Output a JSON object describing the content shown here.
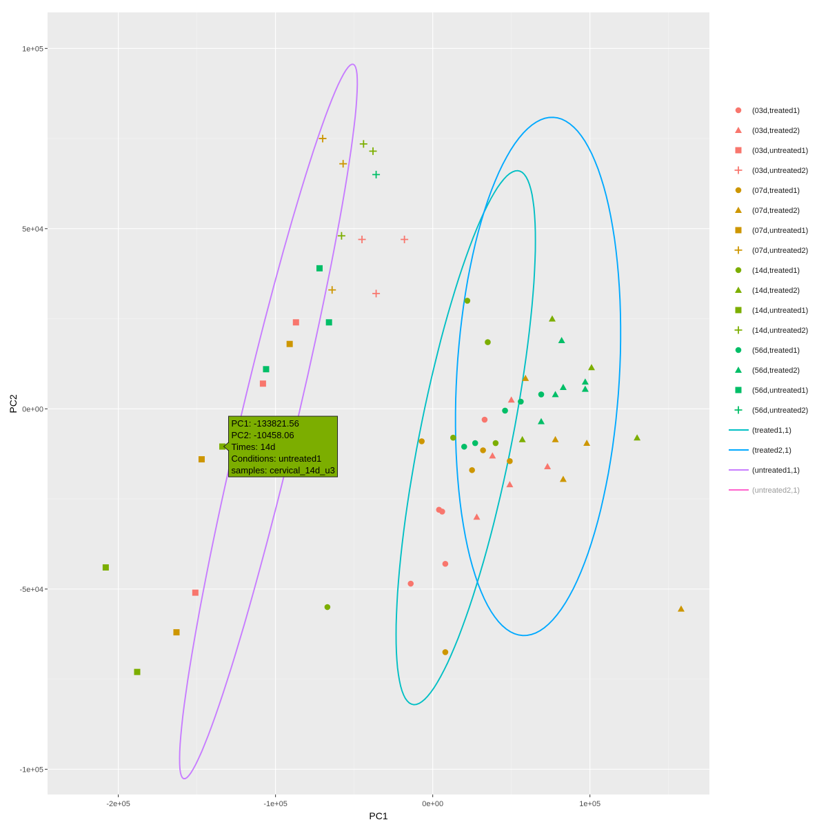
{
  "chart_data": {
    "type": "scatter",
    "title": "",
    "xlabel": "PC1",
    "ylabel": "PC2",
    "xlim": [
      -245000,
      176000
    ],
    "ylim": [
      -107000,
      110000
    ],
    "x_ticks": [
      {
        "value": -200000,
        "label": "-2e+05"
      },
      {
        "value": -100000,
        "label": "-1e+05"
      },
      {
        "value": 0,
        "label": "0e+00"
      },
      {
        "value": 100000,
        "label": "1e+05"
      }
    ],
    "y_ticks": [
      {
        "value": 100000,
        "label": "1e+05"
      },
      {
        "value": 50000,
        "label": "5e+04"
      },
      {
        "value": 0,
        "label": "0e+00"
      },
      {
        "value": -50000,
        "label": "-5e+04"
      },
      {
        "value": -100000,
        "label": "-1e+05"
      }
    ],
    "grid": true,
    "legend_position": "right",
    "colors": {
      "03d": "#F8766D",
      "07d": "#CD9600",
      "14d": "#7CAE00",
      "56d": "#00BE67"
    },
    "shapes": {
      "treated1": "circle",
      "treated2": "triangle",
      "untreated1": "square",
      "untreated2": "plus"
    },
    "series": [
      {
        "name": "(03d,treated1)",
        "time": "03d",
        "condition": "treated1",
        "points": [
          [
            33000,
            -3000
          ],
          [
            4000,
            -28000
          ],
          [
            6000,
            -28500
          ],
          [
            8000,
            -43000
          ],
          [
            -14000,
            -48500
          ]
        ]
      },
      {
        "name": "(03d,treated2)",
        "time": "03d",
        "condition": "treated2",
        "points": [
          [
            50000,
            2500
          ],
          [
            38000,
            -13000
          ],
          [
            73000,
            -16000
          ],
          [
            49000,
            -21000
          ],
          [
            28000,
            -30000
          ]
        ]
      },
      {
        "name": "(03d,untreated1)",
        "time": "03d",
        "condition": "untreated1",
        "points": [
          [
            -87000,
            24000
          ],
          [
            -108000,
            7000
          ],
          [
            -151000,
            -51000
          ]
        ]
      },
      {
        "name": "(03d,untreated2)",
        "time": "03d",
        "condition": "untreated2",
        "points": [
          [
            -45000,
            47000
          ],
          [
            -18000,
            47000
          ],
          [
            -36000,
            32000
          ]
        ]
      },
      {
        "name": "(07d,treated1)",
        "time": "07d",
        "condition": "treated1",
        "points": [
          [
            -7000,
            -9000
          ],
          [
            32000,
            -11500
          ],
          [
            49000,
            -14500
          ],
          [
            25000,
            -17000
          ],
          [
            8000,
            -67500
          ]
        ]
      },
      {
        "name": "(07d,treated2)",
        "time": "07d",
        "condition": "treated2",
        "points": [
          [
            59000,
            8500
          ],
          [
            78000,
            -8500
          ],
          [
            98000,
            -9500
          ],
          [
            83000,
            -19500
          ],
          [
            158000,
            -55500
          ]
        ]
      },
      {
        "name": "(07d,untreated1)",
        "time": "07d",
        "condition": "untreated1",
        "points": [
          [
            -91000,
            18000
          ],
          [
            -147000,
            -14000
          ],
          [
            -163000,
            -62000
          ]
        ]
      },
      {
        "name": "(07d,untreated2)",
        "time": "07d",
        "condition": "untreated2",
        "points": [
          [
            -70000,
            75000
          ],
          [
            -57000,
            68000
          ],
          [
            -64000,
            33000
          ]
        ]
      },
      {
        "name": "(14d,treated1)",
        "time": "14d",
        "condition": "treated1",
        "points": [
          [
            22000,
            30000
          ],
          [
            35000,
            18500
          ],
          [
            13000,
            -8000
          ],
          [
            40000,
            -9500
          ],
          [
            -67000,
            -55000
          ]
        ]
      },
      {
        "name": "(14d,treated2)",
        "time": "14d",
        "condition": "treated2",
        "points": [
          [
            76000,
            25000
          ],
          [
            101000,
            11500
          ],
          [
            57000,
            -8500
          ],
          [
            130000,
            -8000
          ]
        ]
      },
      {
        "name": "(14d,untreated1)",
        "time": "14d",
        "condition": "untreated1",
        "points": [
          [
            -133821.56,
            -10458.06
          ],
          [
            -208000,
            -44000
          ],
          [
            -188000,
            -73000
          ]
        ]
      },
      {
        "name": "(14d,untreated2)",
        "time": "14d",
        "condition": "untreated2",
        "points": [
          [
            -44000,
            73500
          ],
          [
            -38000,
            71500
          ],
          [
            -58000,
            48000
          ]
        ]
      },
      {
        "name": "(56d,treated1)",
        "time": "56d",
        "condition": "treated1",
        "points": [
          [
            69000,
            4000
          ],
          [
            56000,
            2000
          ],
          [
            46000,
            -500
          ],
          [
            27000,
            -9500
          ],
          [
            20000,
            -10500
          ]
        ]
      },
      {
        "name": "(56d,treated2)",
        "time": "56d",
        "condition": "treated2",
        "points": [
          [
            82000,
            19000
          ],
          [
            97000,
            7500
          ],
          [
            83000,
            6000
          ],
          [
            78000,
            4000
          ],
          [
            97000,
            5500
          ],
          [
            69000,
            -3500
          ]
        ]
      },
      {
        "name": "(56d,untreated1)",
        "time": "56d",
        "condition": "untreated1",
        "points": [
          [
            -72000,
            39000
          ],
          [
            -66000,
            24000
          ],
          [
            -106000,
            11000
          ]
        ]
      },
      {
        "name": "(56d,untreated2)",
        "time": "56d",
        "condition": "untreated2",
        "points": [
          [
            -36000,
            65000
          ]
        ]
      }
    ],
    "ellipses": [
      {
        "name": "(treated1,1)",
        "color": "#00BFC4",
        "center": [
          21000,
          -8000
        ],
        "axes": [
          82000,
          27000
        ],
        "angle_deg": 63
      },
      {
        "name": "(treated2,1)",
        "color": "#00A9FF",
        "center": [
          67000,
          9000
        ],
        "axes": [
          73000,
          51000
        ],
        "angle_deg": 76
      },
      {
        "name": "(untreated1,1)",
        "color": "#C77CFF",
        "center": [
          -104500,
          -3500
        ],
        "axes": [
          113000,
          16000
        ],
        "angle_deg": 61
      },
      {
        "name": "(untreated2,1)",
        "color": "#FF61CC",
        "hidden": true
      }
    ],
    "tooltip": {
      "anchor": [
        -133821.56,
        -10458.06
      ],
      "fill": "#7CAE00",
      "lines": [
        "PC1: -133821.56",
        "PC2: -10458.06",
        "Times: 14d",
        "Conditions: untreated1",
        "samples: cervical_14d_u3"
      ]
    }
  }
}
